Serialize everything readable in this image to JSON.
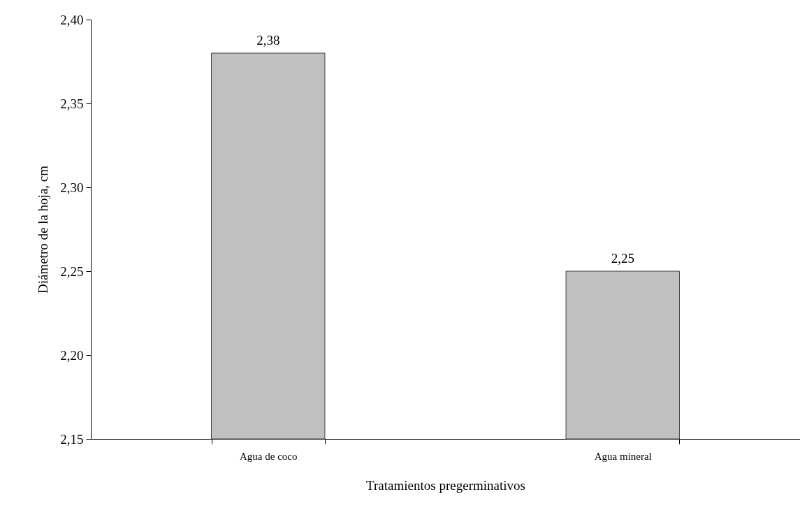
{
  "chart_data": {
    "type": "bar",
    "xlabel": "Tratamientos pregerminativos",
    "ylabel": "Diámetro de la hoja, cm",
    "categories": [
      "Agua de coco",
      "Agua mineral"
    ],
    "values": [
      2.38,
      2.25
    ],
    "color": "#c0c0c0",
    "value_labels": [
      "2,38",
      "2,25"
    ],
    "ylim": [
      2.15,
      2.4
    ],
    "yticks": [
      {
        "value": 2.15,
        "label": "2,15"
      },
      {
        "value": 2.2,
        "label": "2,20"
      },
      {
        "value": 2.25,
        "label": "2,25"
      },
      {
        "value": 2.3,
        "label": "2,30"
      },
      {
        "value": 2.35,
        "label": "2,35"
      },
      {
        "value": 2.4,
        "label": "2,40"
      }
    ]
  }
}
